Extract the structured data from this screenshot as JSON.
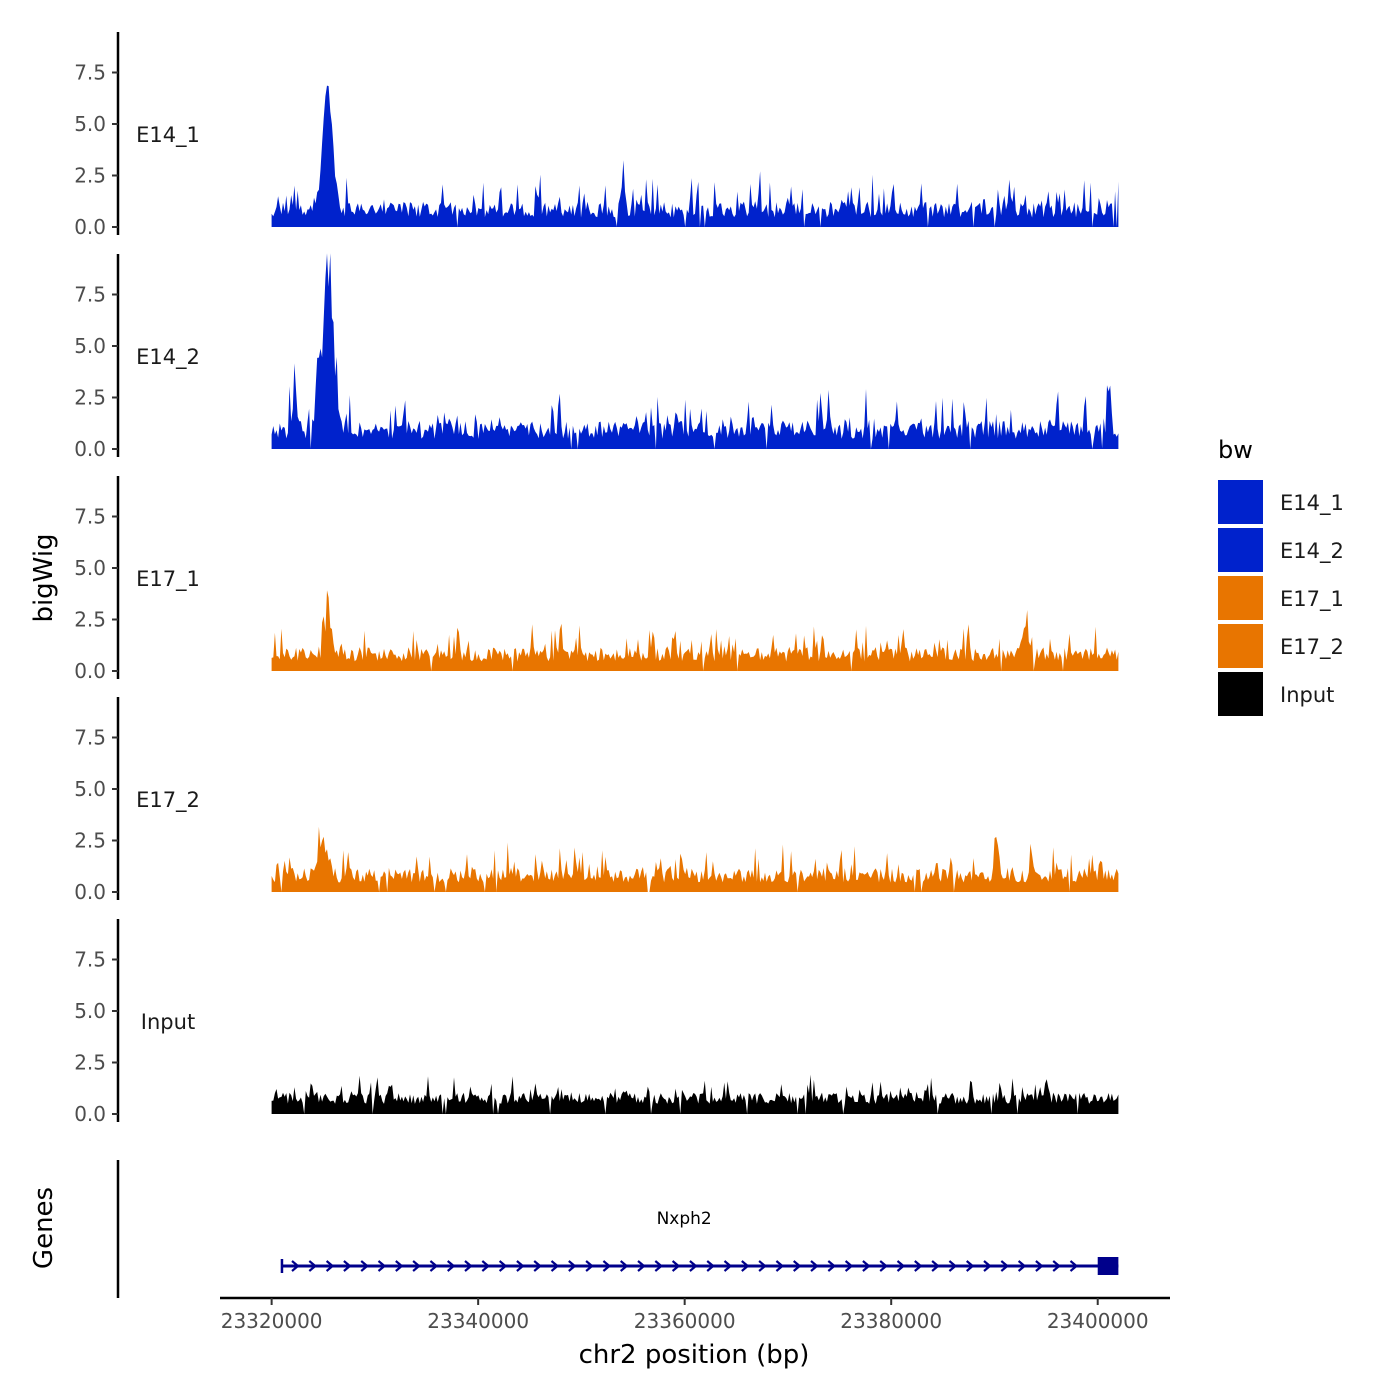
{
  "chart_data": {
    "type": "area",
    "title": "",
    "xlabel": "chr2 position (bp)",
    "ylabel": "bigWig",
    "genes_axis_label": "Genes",
    "xlim": [
      23315000,
      23407000
    ],
    "data_range": [
      23320000,
      23402000
    ],
    "x_ticks": [
      23320000,
      23340000,
      23360000,
      23380000,
      23400000
    ],
    "x_tick_labels": [
      "23320000",
      "23340000",
      "23360000",
      "23380000",
      "23400000"
    ],
    "ylim": [
      0,
      9.5
    ],
    "y_ticks": [
      0,
      2.5,
      5,
      7.5
    ],
    "y_tick_labels": [
      "0.0",
      "2.5",
      "5.0",
      "7.5"
    ],
    "series": [
      {
        "name": "E14_1",
        "color": "#0022cc",
        "baseline": 1.3,
        "noise": 1.4,
        "seed": 11,
        "peaks": [
          {
            "x": 23325400,
            "height": 6.9,
            "width": 700
          },
          {
            "x": 23354000,
            "height": 1.2,
            "width": 300
          },
          {
            "x": 23367300,
            "height": 1.0,
            "width": 300
          }
        ]
      },
      {
        "name": "E14_2",
        "color": "#0022cc",
        "baseline": 1.4,
        "noise": 1.6,
        "seed": 23,
        "peaks": [
          {
            "x": 23325500,
            "height": 9.1,
            "width": 650
          },
          {
            "x": 23324500,
            "height": 4.0,
            "width": 300
          },
          {
            "x": 23322200,
            "height": 2.0,
            "width": 300
          },
          {
            "x": 23401000,
            "height": 2.0,
            "width": 300
          }
        ]
      },
      {
        "name": "E17_1",
        "color": "#e87500",
        "baseline": 1.3,
        "noise": 1.3,
        "seed": 37,
        "peaks": [
          {
            "x": 23325500,
            "height": 2.2,
            "width": 500
          },
          {
            "x": 23393000,
            "height": 1.8,
            "width": 300
          }
        ]
      },
      {
        "name": "E17_2",
        "color": "#e87500",
        "baseline": 1.3,
        "noise": 1.3,
        "seed": 53,
        "peaks": [
          {
            "x": 23325000,
            "height": 2.0,
            "width": 600
          },
          {
            "x": 23390300,
            "height": 1.8,
            "width": 300
          }
        ]
      },
      {
        "name": "Input",
        "color": "#000000",
        "baseline": 1.4,
        "noise": 1.0,
        "seed": 71,
        "peaks": []
      }
    ],
    "legend": {
      "title": "bw",
      "position": "right",
      "entries": [
        {
          "label": "E14_1",
          "color": "#0022cc"
        },
        {
          "label": "E14_2",
          "color": "#0022cc"
        },
        {
          "label": "E17_1",
          "color": "#e87500"
        },
        {
          "label": "E17_2",
          "color": "#e87500"
        },
        {
          "label": "Input",
          "color": "#000000"
        }
      ]
    },
    "gene": {
      "name": "Nxph2",
      "start": 23321000,
      "end": 23402000,
      "strand": "+",
      "color": "#00008b",
      "exons": [
        {
          "start": 23321000,
          "end": 23321300
        },
        {
          "start": 23400000,
          "end": 23402000
        }
      ]
    }
  }
}
